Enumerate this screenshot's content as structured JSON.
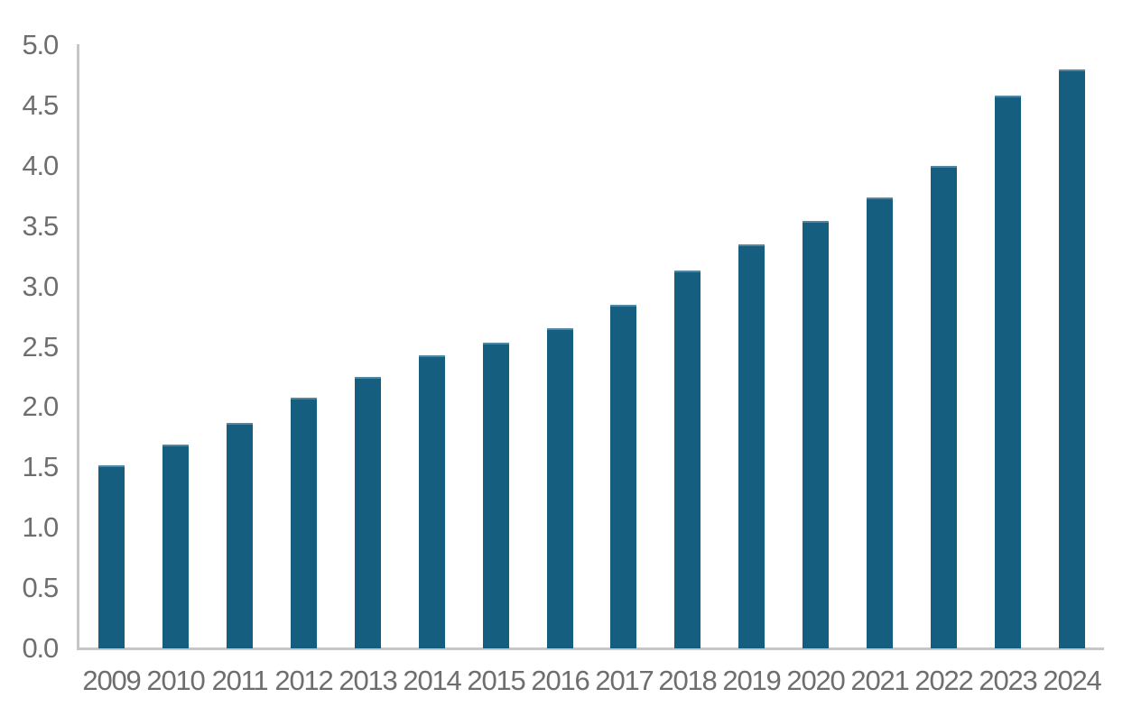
{
  "chart_data": {
    "type": "bar",
    "title": "",
    "xlabel": "",
    "ylabel": "",
    "categories": [
      "2009",
      "2010",
      "2011",
      "2012",
      "2013",
      "2014",
      "2015",
      "2016",
      "2017",
      "2018",
      "2019",
      "2020",
      "2021",
      "2022",
      "2023",
      "2024"
    ],
    "values": [
      1.52,
      1.69,
      1.87,
      2.08,
      2.25,
      2.43,
      2.53,
      2.65,
      2.85,
      3.13,
      3.35,
      3.54,
      3.74,
      4.0,
      4.58,
      4.8
    ],
    "ylim": [
      0,
      5
    ],
    "ytick_step": 0.5,
    "ytick_labels": [
      "0.0",
      "0.5",
      "1.0",
      "1.5",
      "2.0",
      "2.5",
      "3.0",
      "3.5",
      "4.0",
      "4.5",
      "5.0"
    ],
    "grid": false,
    "legend_position": "none",
    "colors": {
      "bar": "#165E80",
      "bar_top_edge": "#4F86A3",
      "axis": "#C6C6C6",
      "tick_label": "#6E6E6E",
      "background": "#FFFFFF"
    }
  }
}
